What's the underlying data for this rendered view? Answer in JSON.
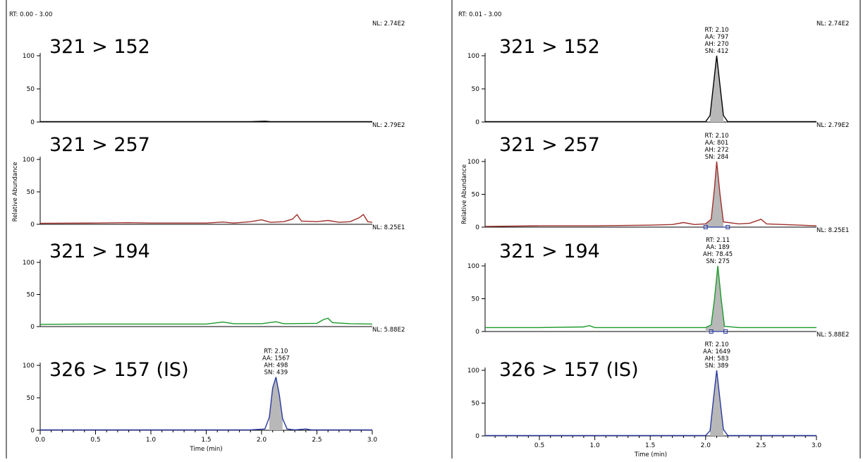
{
  "chart_data": [
    {
      "type": "line",
      "panel": "left",
      "rt_range": "RT: 0.00 - 3.00",
      "xlabel": "Time (min)",
      "ylabel": "Relative Abundance",
      "xlim": [
        0.0,
        3.0
      ],
      "xticks": [
        "0.0",
        "0.5",
        "1.0",
        "1.5",
        "2.0",
        "2.5",
        "3.0"
      ],
      "yticks": [
        "0",
        "50",
        "100"
      ],
      "traces": [
        {
          "title": "321 > 152",
          "nl": "NL: 2.74E2",
          "color": "#000000",
          "ylim": [
            0,
            100
          ],
          "points": [
            [
              0.0,
              0.6
            ],
            [
              0.5,
              0.6
            ],
            [
              1.0,
              0.5
            ],
            [
              1.5,
              0.6
            ],
            [
              1.9,
              0.6
            ],
            [
              2.03,
              1.3
            ],
            [
              2.08,
              0.6
            ],
            [
              2.5,
              0.6
            ],
            [
              3.0,
              0.6
            ]
          ],
          "annotation": null
        },
        {
          "title": "321 > 257",
          "nl": "NL: 2.79E2",
          "color": "#a0302a",
          "ylim": [
            0,
            100
          ],
          "points": [
            [
              0.0,
              1.5
            ],
            [
              0.5,
              2.0
            ],
            [
              0.8,
              2.5
            ],
            [
              1.0,
              2.0
            ],
            [
              1.5,
              2.0
            ],
            [
              1.65,
              3.5
            ],
            [
              1.75,
              2.0
            ],
            [
              1.9,
              4.0
            ],
            [
              2.0,
              7.0
            ],
            [
              2.08,
              3.0
            ],
            [
              2.2,
              4.0
            ],
            [
              2.28,
              8.0
            ],
            [
              2.32,
              15.0
            ],
            [
              2.36,
              5.0
            ],
            [
              2.5,
              4.0
            ],
            [
              2.6,
              6.0
            ],
            [
              2.7,
              3.0
            ],
            [
              2.8,
              4.0
            ],
            [
              2.88,
              10.0
            ],
            [
              2.92,
              15.0
            ],
            [
              2.96,
              4.0
            ],
            [
              3.0,
              3.0
            ]
          ],
          "annotation": null
        },
        {
          "title": "321 > 194",
          "nl": "NL: 8.25E1",
          "color": "#1a9a2a",
          "ylim": [
            0,
            100
          ],
          "points": [
            [
              0.0,
              3.5
            ],
            [
              0.5,
              4.0
            ],
            [
              1.0,
              4.0
            ],
            [
              1.5,
              4.0
            ],
            [
              1.65,
              7.0
            ],
            [
              1.75,
              4.5
            ],
            [
              2.0,
              4.5
            ],
            [
              2.13,
              7.5
            ],
            [
              2.2,
              4.5
            ],
            [
              2.5,
              5.0
            ],
            [
              2.56,
              11.0
            ],
            [
              2.6,
              13.0
            ],
            [
              2.64,
              6.0
            ],
            [
              2.8,
              4.5
            ],
            [
              3.0,
              4.0
            ]
          ],
          "annotation": null
        },
        {
          "title": "326 > 157 (IS)",
          "nl": "NL: 5.88E2",
          "color": "#2a3aa0",
          "ylim": [
            0,
            100
          ],
          "points": [
            [
              0.0,
              0.5
            ],
            [
              1.9,
              0.5
            ],
            [
              2.03,
              2.0
            ],
            [
              2.07,
              20.0
            ],
            [
              2.1,
              65.0
            ],
            [
              2.13,
              82.0
            ],
            [
              2.16,
              55.0
            ],
            [
              2.19,
              18.0
            ],
            [
              2.23,
              2.0
            ],
            [
              2.3,
              0.5
            ],
            [
              2.4,
              2.0
            ],
            [
              2.45,
              0.5
            ],
            [
              3.0,
              0.5
            ]
          ],
          "annotation": {
            "rt": "RT: 2.10",
            "aa": "AA: 1567",
            "ah": "AH: 498",
            "sn": "SN: 439"
          }
        }
      ]
    },
    {
      "type": "line",
      "panel": "right",
      "rt_range": "RT: 0.01 - 3.00",
      "xlabel": "Time (min)",
      "ylabel": "Relative Abundance",
      "xlim": [
        0.01,
        3.0
      ],
      "xticks": [
        "0.5",
        "1.0",
        "1.5",
        "2.0",
        "2.5",
        "3.0"
      ],
      "yticks": [
        "0",
        "50",
        "100"
      ],
      "traces": [
        {
          "title": "321 > 152",
          "nl": "NL: 2.74E2",
          "color": "#000000",
          "ylim": [
            0,
            100
          ],
          "points": [
            [
              0.01,
              0.5
            ],
            [
              1.9,
              0.5
            ],
            [
              2.0,
              0.5
            ],
            [
              2.04,
              10.0
            ],
            [
              2.07,
              55.0
            ],
            [
              2.1,
              100.0
            ],
            [
              2.13,
              55.0
            ],
            [
              2.16,
              10.0
            ],
            [
              2.2,
              0.5
            ],
            [
              3.0,
              0.5
            ]
          ],
          "annotation": {
            "rt": "RT: 2.10",
            "aa": "AA: 797",
            "ah": "AH: 270",
            "sn": "SN: 412"
          }
        },
        {
          "title": "321 > 257",
          "nl": "NL: 2.79E2",
          "color": "#a0302a",
          "ylim": [
            0,
            100
          ],
          "points": [
            [
              0.01,
              1.0
            ],
            [
              0.5,
              2.0
            ],
            [
              1.0,
              2.0
            ],
            [
              1.5,
              3.0
            ],
            [
              1.7,
              4.0
            ],
            [
              1.8,
              7.0
            ],
            [
              1.9,
              4.0
            ],
            [
              2.0,
              5.0
            ],
            [
              2.05,
              12.0
            ],
            [
              2.08,
              60.0
            ],
            [
              2.1,
              100.0
            ],
            [
              2.13,
              50.0
            ],
            [
              2.16,
              8.0
            ],
            [
              2.3,
              5.0
            ],
            [
              2.4,
              6.0
            ],
            [
              2.5,
              12.0
            ],
            [
              2.55,
              5.0
            ],
            [
              2.7,
              4.0
            ],
            [
              3.0,
              2.0
            ]
          ],
          "annotation": {
            "rt": "RT: 2.10",
            "aa": "AA: 801",
            "ah": "AH: 272",
            "sn": "SN: 284"
          }
        },
        {
          "title": "321 > 194",
          "nl": "NL: 8.25E1",
          "color": "#1a9a2a",
          "ylim": [
            0,
            100
          ],
          "points": [
            [
              0.01,
              6.0
            ],
            [
              0.5,
              6.0
            ],
            [
              0.9,
              7.0
            ],
            [
              0.95,
              9.0
            ],
            [
              1.0,
              6.0
            ],
            [
              1.5,
              6.0
            ],
            [
              2.0,
              6.0
            ],
            [
              2.05,
              10.0
            ],
            [
              2.08,
              50.0
            ],
            [
              2.11,
              100.0
            ],
            [
              2.14,
              50.0
            ],
            [
              2.17,
              8.0
            ],
            [
              2.3,
              6.0
            ],
            [
              3.0,
              6.0
            ]
          ],
          "annotation": {
            "rt": "RT: 2.11",
            "aa": "AA: 189",
            "ah": "AH: 78.45",
            "sn": "SN: 275"
          }
        },
        {
          "title": "326 > 157 (IS)",
          "nl": "NL: 5.88E2",
          "color": "#2a3aa0",
          "ylim": [
            0,
            100
          ],
          "points": [
            [
              0.01,
              0.5
            ],
            [
              2.0,
              0.5
            ],
            [
              2.04,
              8.0
            ],
            [
              2.07,
              55.0
            ],
            [
              2.1,
              100.0
            ],
            [
              2.13,
              55.0
            ],
            [
              2.16,
              10.0
            ],
            [
              2.2,
              0.5
            ],
            [
              3.0,
              0.5
            ]
          ],
          "annotation": {
            "rt": "RT: 2.10",
            "aa": "AA: 1649",
            "ah": "AH: 583",
            "sn": "SN: 389"
          }
        }
      ]
    }
  ]
}
